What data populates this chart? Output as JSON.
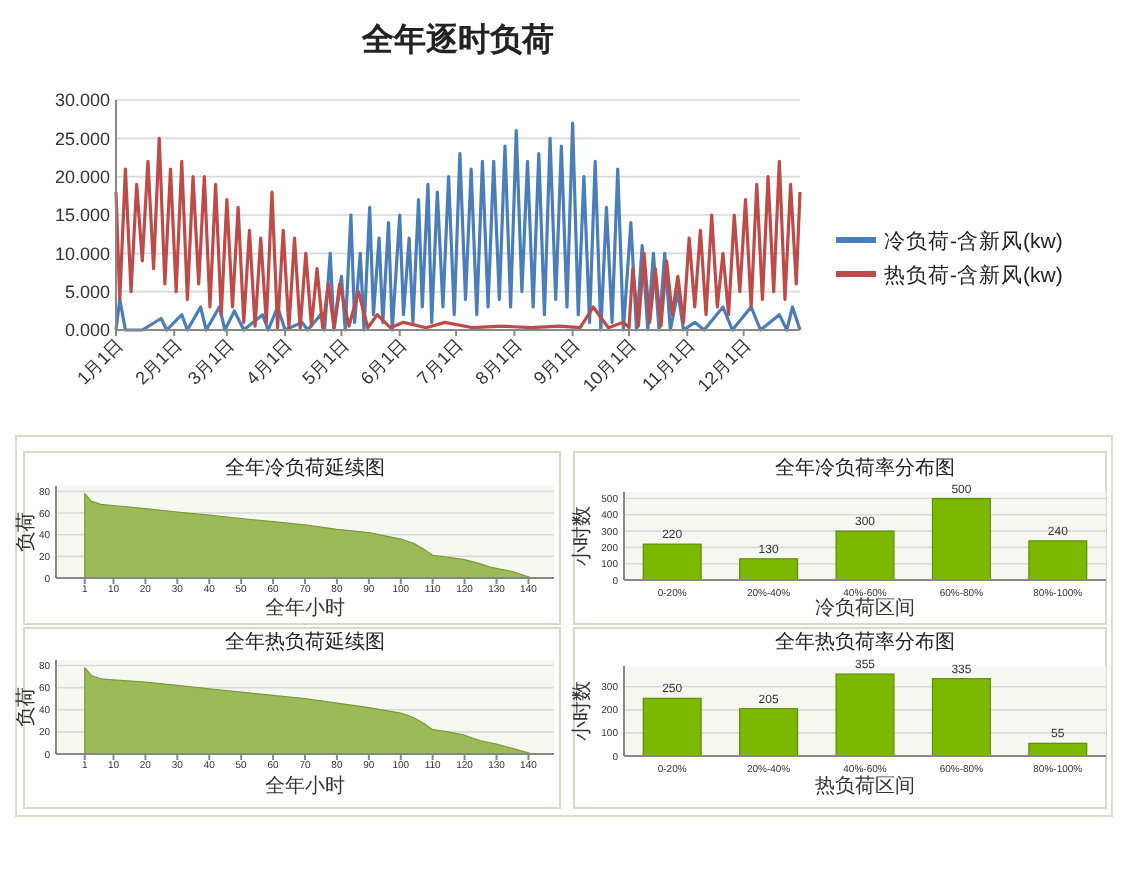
{
  "chart_data": [
    {
      "type": "line",
      "title": "全年逐时负荷",
      "grid": "y",
      "legend": "right",
      "xlim": [
        "--01-01",
        "--12-31"
      ],
      "ylim": [
        0,
        30
      ],
      "yticks": [
        {
          "value": 0,
          "label": "0.000"
        },
        {
          "value": 5,
          "label": "5.000"
        },
        {
          "value": 10,
          "label": "10.000"
        },
        {
          "value": 15,
          "label": "15.000"
        },
        {
          "value": 20,
          "label": "20.000"
        },
        {
          "value": 25,
          "label": "25.000"
        },
        {
          "value": 30,
          "label": "30.000"
        }
      ],
      "xticks": [
        {
          "value": "--01-01",
          "label": "1月1日"
        },
        {
          "value": "--02-01",
          "label": "2月1日"
        },
        {
          "value": "--03-01",
          "label": "3月1日"
        },
        {
          "value": "--04-01",
          "label": "4月1日"
        },
        {
          "value": "--05-01",
          "label": "5月1日"
        },
        {
          "value": "--06-01",
          "label": "6月1日"
        },
        {
          "value": "--07-01",
          "label": "7月1日"
        },
        {
          "value": "--08-01",
          "label": "8月1日"
        },
        {
          "value": "--09-01",
          "label": "9月1日"
        },
        {
          "value": "--10-01",
          "label": "10月1日"
        },
        {
          "value": "--11-01",
          "label": "11月1日"
        },
        {
          "value": "--12-01",
          "label": "12月1日"
        }
      ],
      "series": [
        {
          "name": "冷负荷-含新风(kw)",
          "color": "#4a7ebb",
          "x": [
            "--01-01",
            "--01-03",
            "--01-06",
            "--01-15",
            "--01-25",
            "--01-28",
            "--02-05",
            "--02-08",
            "--02-15",
            "--02-18",
            "--02-25",
            "--02-28",
            "--03-05",
            "--03-10",
            "--03-20",
            "--03-23",
            "--03-28",
            "--04-01",
            "--04-10",
            "--04-13",
            "--04-20",
            "--04-22",
            "--04-25",
            "--04-27",
            "--05-01",
            "--05-03",
            "--05-06",
            "--05-08",
            "--05-11",
            "--05-13",
            "--05-16",
            "--05-18",
            "--05-21",
            "--05-23",
            "--05-26",
            "--05-28",
            "--06-01",
            "--06-03",
            "--06-06",
            "--06-08",
            "--06-11",
            "--06-13",
            "--06-16",
            "--06-18",
            "--06-21",
            "--06-24",
            "--06-27",
            "--06-30",
            "--07-03",
            "--07-06",
            "--07-09",
            "--07-12",
            "--07-15",
            "--07-18",
            "--07-21",
            "--07-24",
            "--07-27",
            "--07-30",
            "--08-02",
            "--08-05",
            "--08-08",
            "--08-11",
            "--08-14",
            "--08-17",
            "--08-20",
            "--08-23",
            "--08-26",
            "--08-29",
            "--09-01",
            "--09-04",
            "--09-07",
            "--09-10",
            "--09-13",
            "--09-16",
            "--09-19",
            "--09-22",
            "--09-25",
            "--09-28",
            "--10-02",
            "--10-05",
            "--10-08",
            "--10-11",
            "--10-14",
            "--10-17",
            "--10-20",
            "--10-23",
            "--10-27",
            "--10-30",
            "--11-05",
            "--11-10",
            "--11-20",
            "--11-25",
            "--12-05",
            "--12-10",
            "--12-20",
            "--12-24",
            "--12-27",
            "--12-31"
          ],
          "values": [
            0,
            4,
            0,
            0,
            1.5,
            0,
            2,
            0,
            3,
            0,
            3,
            0,
            2.5,
            0,
            2,
            0,
            3,
            0,
            1,
            0,
            2,
            0,
            10,
            0,
            7,
            0,
            15,
            1,
            10,
            0,
            16,
            2,
            12,
            1,
            14,
            0,
            15,
            2,
            12,
            1,
            17,
            3,
            19,
            1,
            18,
            3,
            20,
            2,
            23,
            4,
            21,
            2,
            22,
            3,
            22,
            4,
            24,
            3,
            26,
            5,
            22,
            3,
            23,
            2,
            25,
            4,
            24,
            3,
            27,
            2,
            20,
            1,
            22,
            0,
            16,
            1,
            21,
            0,
            14,
            0,
            11,
            0,
            10,
            0,
            10,
            0,
            5,
            0,
            1,
            0,
            3,
            0,
            3,
            0,
            2,
            0,
            3,
            0
          ]
        },
        {
          "name": "热负荷-含新风(kw)",
          "color": "#be4b48",
          "x": [
            "--01-01",
            "--01-03",
            "--01-06",
            "--01-09",
            "--01-12",
            "--01-15",
            "--01-18",
            "--01-21",
            "--01-24",
            "--01-27",
            "--01-30",
            "--02-02",
            "--02-05",
            "--02-08",
            "--02-11",
            "--02-14",
            "--02-17",
            "--02-20",
            "--02-23",
            "--02-26",
            "--03-01",
            "--03-04",
            "--03-07",
            "--03-10",
            "--03-13",
            "--03-16",
            "--03-19",
            "--03-22",
            "--03-25",
            "--03-28",
            "--03-31",
            "--04-03",
            "--04-06",
            "--04-09",
            "--04-12",
            "--04-15",
            "--04-18",
            "--04-21",
            "--04-24",
            "--04-27",
            "--04-30",
            "--05-05",
            "--05-10",
            "--05-15",
            "--05-20",
            "--05-27",
            "--06-03",
            "--06-15",
            "--06-25",
            "--07-10",
            "--07-25",
            "--08-10",
            "--08-25",
            "--09-05",
            "--09-12",
            "--09-20",
            "--09-28",
            "--10-01",
            "--10-03",
            "--10-06",
            "--10-09",
            "--10-12",
            "--10-15",
            "--10-18",
            "--10-21",
            "--10-24",
            "--10-27",
            "--10-30",
            "--11-02",
            "--11-05",
            "--11-08",
            "--11-11",
            "--11-14",
            "--11-17",
            "--11-20",
            "--11-23",
            "--11-26",
            "--11-29",
            "--12-02",
            "--12-05",
            "--12-08",
            "--12-11",
            "--12-14",
            "--12-17",
            "--12-20",
            "--12-23",
            "--12-26",
            "--12-29",
            "--12-31"
          ],
          "values": [
            18,
            4,
            21,
            5,
            19,
            9,
            22,
            8,
            25,
            6,
            21,
            5,
            22,
            4,
            20,
            6,
            20,
            3,
            19,
            2,
            17,
            3,
            16,
            1,
            13,
            0.5,
            12,
            1,
            18,
            0.3,
            13,
            0.3,
            12,
            0.2,
            10,
            0.5,
            8,
            0.3,
            6,
            0.3,
            6,
            0.5,
            5,
            0.3,
            2,
            0.3,
            1,
            0.3,
            1,
            0.3,
            0.5,
            0.3,
            0.5,
            0.3,
            3,
            0.3,
            1,
            0.3,
            8,
            0.5,
            10,
            1,
            8,
            0.5,
            9,
            2,
            7,
            1,
            12,
            3,
            13,
            2,
            15,
            3,
            10,
            2,
            15,
            5,
            17,
            3,
            19,
            4,
            20,
            5,
            22,
            4,
            19,
            6,
            18
          ]
        }
      ]
    },
    {
      "type": "area",
      "title": "全年冷负荷延续图",
      "xlabel": "全年小时",
      "ylabel": "负荷",
      "grid": "y",
      "xlim": [
        -8,
        148
      ],
      "ylim": [
        0,
        85
      ],
      "xticks": [
        1,
        10,
        20,
        30,
        40,
        50,
        60,
        70,
        80,
        90,
        100,
        110,
        120,
        130,
        140
      ],
      "yticks": [
        0,
        20,
        40,
        60,
        80
      ],
      "series": [
        {
          "color": "#9bbb59",
          "x": [
            1,
            3,
            6,
            10,
            20,
            30,
            40,
            50,
            60,
            70,
            80,
            90,
            100,
            104,
            107,
            110,
            115,
            120,
            125,
            128,
            135,
            140,
            141
          ],
          "values": [
            78,
            71,
            68,
            67,
            64,
            61,
            58,
            55,
            52,
            49,
            45,
            42,
            36,
            32,
            27,
            21,
            19,
            17,
            13,
            10,
            6,
            1,
            0
          ]
        }
      ]
    },
    {
      "type": "bar",
      "title": "全年冷负荷率分布图",
      "xlabel": "冷负荷区间",
      "ylabel": "小时数",
      "grid": "y",
      "data_labels": true,
      "ylim": [
        0,
        540
      ],
      "yticks": [
        0,
        100,
        200,
        300,
        400,
        500
      ],
      "categories": [
        "0-20%",
        "20%-40%",
        "40%-60%",
        "60%-80%",
        "80%-100%"
      ],
      "series": [
        {
          "color": "#7cb800",
          "values": [
            220,
            130,
            300,
            500,
            240
          ]
        }
      ]
    },
    {
      "type": "area",
      "title": "全年热负荷延续图",
      "xlabel": "全年小时",
      "ylabel": "负荷",
      "grid": "y",
      "xlim": [
        -8,
        148
      ],
      "ylim": [
        0,
        85
      ],
      "xticks": [
        1,
        10,
        20,
        30,
        40,
        50,
        60,
        70,
        80,
        90,
        100,
        110,
        120,
        130,
        140
      ],
      "yticks": [
        0,
        20,
        40,
        60,
        80
      ],
      "series": [
        {
          "color": "#9bbb59",
          "x": [
            1,
            3,
            6,
            10,
            20,
            30,
            40,
            50,
            60,
            70,
            80,
            90,
            100,
            104,
            107,
            110,
            115,
            120,
            125,
            130,
            140,
            141
          ],
          "values": [
            78,
            71,
            68,
            67,
            65,
            62,
            59,
            56,
            53,
            50,
            46,
            42,
            37,
            33,
            28,
            22,
            20,
            17,
            12,
            9,
            1,
            0
          ]
        }
      ]
    },
    {
      "type": "bar",
      "title": "全年热负荷率分布图",
      "xlabel": "热负荷区间",
      "ylabel": "小时数",
      "grid": "y",
      "data_labels": true,
      "ylim": [
        0,
        390
      ],
      "yticks": [
        0,
        100,
        200,
        300
      ],
      "categories": [
        "0-20%",
        "20%-40%",
        "40%-60%",
        "60%-80%",
        "80%-100%"
      ],
      "series": [
        {
          "color": "#7cb800",
          "values": [
            250,
            205,
            355,
            335,
            55
          ]
        }
      ]
    }
  ]
}
